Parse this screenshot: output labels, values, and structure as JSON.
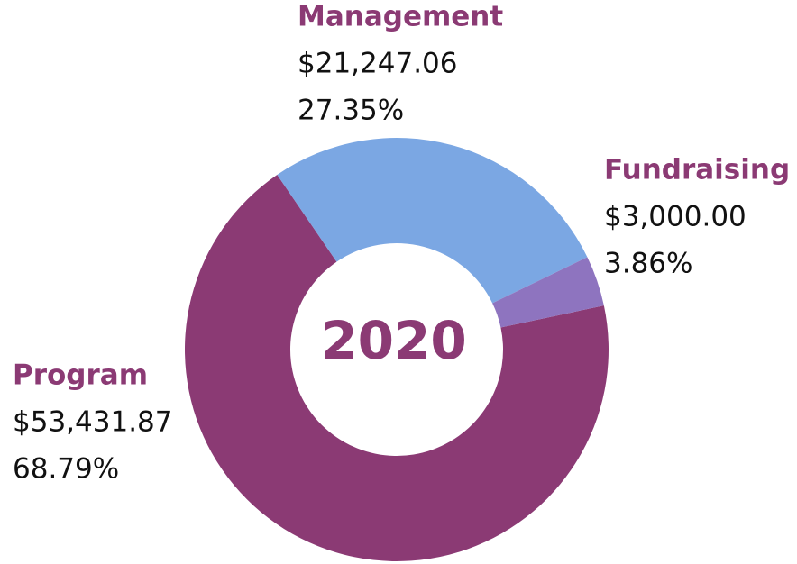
{
  "chart_data": {
    "type": "donut",
    "title": "2020",
    "categories": [
      "Program",
      "Management",
      "Fundraising"
    ],
    "values": [
      68.79,
      27.35,
      3.86
    ],
    "value_labels": [
      "68.79%",
      "27.35%",
      "3.86%"
    ],
    "amounts": [
      53431.87,
      21247.06,
      3000.0
    ],
    "amount_labels": [
      "$53,431.87",
      "$21,247.06",
      "$3,000.00"
    ],
    "colors": [
      "#8b3a74",
      "#7ba7e3",
      "#8e74bf"
    ]
  }
}
